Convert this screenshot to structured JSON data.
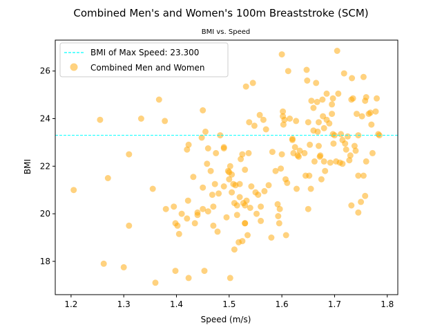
{
  "chart_data": {
    "type": "scatter",
    "title": "Combined Men's and Women's 100m Breaststroke (SCM)",
    "subtitle": "BMI vs. Speed",
    "xlabel": "Speed (m/s)",
    "ylabel": "BMI",
    "xlim": [
      1.17,
      1.82
    ],
    "ylim": [
      16.6,
      27.3
    ],
    "xticks": [
      "1.2",
      "1.3",
      "1.4",
      "1.5",
      "1.6",
      "1.7",
      "1.8"
    ],
    "yticks": [
      "18",
      "20",
      "22",
      "24",
      "26"
    ],
    "grid": false,
    "legend_position": "top-left",
    "reference_line": {
      "label": "BMI of Max Speed: 23.300",
      "y": 23.3,
      "color": "#00ffff",
      "style": "dashed"
    },
    "series": [
      {
        "name": "Combined Men and Women",
        "color": "#ffa500",
        "opacity": 0.5,
        "points": [
          [
            1.205,
            21.0
          ],
          [
            1.255,
            23.95
          ],
          [
            1.262,
            17.9
          ],
          [
            1.27,
            21.5
          ],
          [
            1.3,
            17.75
          ],
          [
            1.31,
            22.5
          ],
          [
            1.31,
            19.5
          ],
          [
            1.333,
            24.0
          ],
          [
            1.355,
            21.05
          ],
          [
            1.36,
            17.1
          ],
          [
            1.367,
            24.8
          ],
          [
            1.378,
            23.9
          ],
          [
            1.38,
            20.2
          ],
          [
            1.395,
            20.3
          ],
          [
            1.398,
            19.6
          ],
          [
            1.398,
            17.6
          ],
          [
            1.402,
            19.5
          ],
          [
            1.405,
            19.15
          ],
          [
            1.41,
            20.0
          ],
          [
            1.42,
            22.7
          ],
          [
            1.42,
            19.8
          ],
          [
            1.422,
            20.55
          ],
          [
            1.423,
            22.9
          ],
          [
            1.423,
            17.3
          ],
          [
            1.432,
            21.55
          ],
          [
            1.435,
            19.6
          ],
          [
            1.44,
            20.05
          ],
          [
            1.44,
            19.95
          ],
          [
            1.448,
            23.2
          ],
          [
            1.45,
            24.35
          ],
          [
            1.45,
            21.1
          ],
          [
            1.45,
            20.2
          ],
          [
            1.453,
            17.6
          ],
          [
            1.455,
            23.45
          ],
          [
            1.458,
            22.1
          ],
          [
            1.46,
            22.75
          ],
          [
            1.46,
            20.1
          ],
          [
            1.465,
            21.8
          ],
          [
            1.468,
            20.8
          ],
          [
            1.47,
            20.3
          ],
          [
            1.47,
            19.5
          ],
          [
            1.473,
            21.25
          ],
          [
            1.475,
            22.55
          ],
          [
            1.478,
            19.25
          ],
          [
            1.48,
            20.85
          ],
          [
            1.483,
            23.3
          ],
          [
            1.49,
            22.8
          ],
          [
            1.49,
            22.75
          ],
          [
            1.49,
            21.15
          ],
          [
            1.495,
            19.85
          ],
          [
            1.498,
            21.8
          ],
          [
            1.5,
            21.75
          ],
          [
            1.5,
            21.45
          ],
          [
            1.502,
            22.0
          ],
          [
            1.502,
            17.3
          ],
          [
            1.505,
            21.65
          ],
          [
            1.505,
            20.9
          ],
          [
            1.508,
            21.25
          ],
          [
            1.51,
            20.45
          ],
          [
            1.51,
            18.5
          ],
          [
            1.512,
            21.2
          ],
          [
            1.515,
            19.95
          ],
          [
            1.515,
            20.35
          ],
          [
            1.518,
            18.8
          ],
          [
            1.52,
            20.7
          ],
          [
            1.52,
            21.25
          ],
          [
            1.522,
            22.3
          ],
          [
            1.525,
            22.5
          ],
          [
            1.525,
            18.85
          ],
          [
            1.527,
            20.45
          ],
          [
            1.53,
            21.85
          ],
          [
            1.53,
            20.35
          ],
          [
            1.53,
            19.6
          ],
          [
            1.53,
            19.6
          ],
          [
            1.532,
            25.35
          ],
          [
            1.533,
            20.55
          ],
          [
            1.535,
            19.1
          ],
          [
            1.537,
            22.55
          ],
          [
            1.538,
            23.85
          ],
          [
            1.54,
            20.25
          ],
          [
            1.542,
            21.15
          ],
          [
            1.545,
            25.5
          ],
          [
            1.548,
            23.7
          ],
          [
            1.55,
            20.9
          ],
          [
            1.552,
            20.0
          ],
          [
            1.555,
            20.8
          ],
          [
            1.558,
            24.15
          ],
          [
            1.56,
            20.3
          ],
          [
            1.56,
            19.7
          ],
          [
            1.565,
            23.95
          ],
          [
            1.567,
            20.95
          ],
          [
            1.57,
            23.55
          ],
          [
            1.575,
            21.2
          ],
          [
            1.58,
            19.0
          ],
          [
            1.582,
            22.6
          ],
          [
            1.588,
            21.8
          ],
          [
            1.592,
            20.4
          ],
          [
            1.593,
            19.9
          ],
          [
            1.595,
            19.6
          ],
          [
            1.596,
            20.2
          ],
          [
            1.598,
            21.9
          ],
          [
            1.6,
            26.7
          ],
          [
            1.6,
            22.5
          ],
          [
            1.602,
            24.3
          ],
          [
            1.602,
            24.1
          ],
          [
            1.603,
            23.75
          ],
          [
            1.605,
            23.95
          ],
          [
            1.607,
            21.45
          ],
          [
            1.608,
            19.1
          ],
          [
            1.61,
            21.3
          ],
          [
            1.612,
            26.0
          ],
          [
            1.615,
            24.0
          ],
          [
            1.62,
            23.15
          ],
          [
            1.62,
            23.1
          ],
          [
            1.622,
            22.55
          ],
          [
            1.625,
            22.8
          ],
          [
            1.627,
            23.9
          ],
          [
            1.628,
            21.05
          ],
          [
            1.63,
            22.45
          ],
          [
            1.632,
            22.4
          ],
          [
            1.634,
            22.65
          ],
          [
            1.643,
            22.55
          ],
          [
            1.645,
            21.6
          ],
          [
            1.647,
            26.05
          ],
          [
            1.648,
            25.6
          ],
          [
            1.65,
            23.85
          ],
          [
            1.65,
            20.2
          ],
          [
            1.652,
            21.6
          ],
          [
            1.653,
            22.9
          ],
          [
            1.655,
            21.05
          ],
          [
            1.656,
            24.75
          ],
          [
            1.66,
            24.45
          ],
          [
            1.66,
            23.5
          ],
          [
            1.662,
            22.2
          ],
          [
            1.665,
            25.5
          ],
          [
            1.667,
            24.7
          ],
          [
            1.668,
            23.45
          ],
          [
            1.67,
            23.85
          ],
          [
            1.67,
            22.85
          ],
          [
            1.672,
            22.4
          ],
          [
            1.673,
            22.45
          ],
          [
            1.675,
            21.45
          ],
          [
            1.677,
            24.8
          ],
          [
            1.678,
            24.1
          ],
          [
            1.68,
            23.6
          ],
          [
            1.68,
            22.2
          ],
          [
            1.682,
            21.8
          ],
          [
            1.685,
            25.05
          ],
          [
            1.685,
            23.95
          ],
          [
            1.69,
            23.8
          ],
          [
            1.692,
            22.15
          ],
          [
            1.695,
            24.6
          ],
          [
            1.695,
            24.2
          ],
          [
            1.697,
            24.85
          ],
          [
            1.697,
            23.35
          ],
          [
            1.698,
            22.95
          ],
          [
            1.7,
            23.3
          ],
          [
            1.703,
            22.2
          ],
          [
            1.705,
            26.85
          ],
          [
            1.707,
            25.05
          ],
          [
            1.71,
            22.15
          ],
          [
            1.712,
            23.35
          ],
          [
            1.715,
            23.1
          ],
          [
            1.715,
            22.1
          ],
          [
            1.718,
            25.9
          ],
          [
            1.72,
            22.95
          ],
          [
            1.722,
            22.7
          ],
          [
            1.725,
            23.25
          ],
          [
            1.728,
            22.25
          ],
          [
            1.73,
            22.45
          ],
          [
            1.732,
            20.35
          ],
          [
            1.732,
            24.8
          ],
          [
            1.733,
            25.7
          ],
          [
            1.735,
            24.85
          ],
          [
            1.738,
            22.85
          ],
          [
            1.74,
            22.65
          ],
          [
            1.742,
            24.2
          ],
          [
            1.745,
            20.05
          ],
          [
            1.745,
            21.6
          ],
          [
            1.745,
            23.3
          ],
          [
            1.75,
            20.5
          ],
          [
            1.752,
            24.1
          ],
          [
            1.755,
            21.6
          ],
          [
            1.755,
            25.75
          ],
          [
            1.758,
            24.75
          ],
          [
            1.758,
            20.75
          ],
          [
            1.76,
            22.2
          ],
          [
            1.76,
            24.9
          ],
          [
            1.765,
            24.2
          ],
          [
            1.768,
            24.25
          ],
          [
            1.77,
            23.75
          ],
          [
            1.772,
            22.55
          ],
          [
            1.778,
            24.3
          ],
          [
            1.78,
            24.85
          ],
          [
            1.783,
            23.35
          ],
          [
            1.785,
            23.3
          ]
        ]
      }
    ]
  }
}
